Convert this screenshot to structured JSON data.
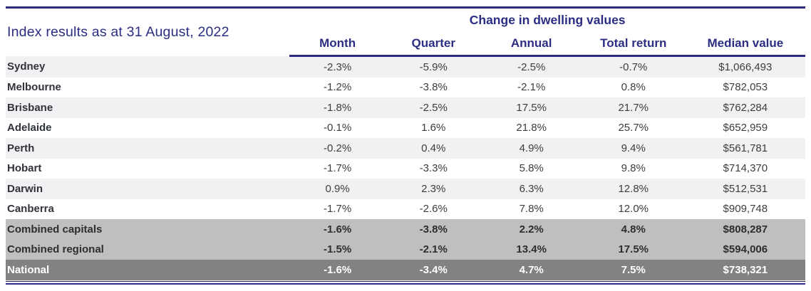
{
  "title": "Index results as at 31 August, 2022",
  "colors": {
    "accent_navy": "#2b2e83",
    "stripe_row_bg": "#f1f1f4",
    "subtotal_row_bg": "#bfbfbf",
    "total_row_bg": "#828282",
    "total_row_text": "#ffffff"
  },
  "chart_data": {
    "type": "table",
    "title": "Index results as at 31 August, 2022",
    "group_header": "Change in dwelling values",
    "columns": {
      "month": "Month",
      "quarter": "Quarter",
      "annual": "Annual",
      "total_return": "Total return",
      "median_value": "Median value"
    },
    "rows": [
      {
        "label": "Sydney",
        "month": "-2.3%",
        "quarter": "-5.9%",
        "annual": "-2.5%",
        "total_return": "-0.7%",
        "median_value": "$1,066,493"
      },
      {
        "label": "Melbourne",
        "month": "-1.2%",
        "quarter": "-3.8%",
        "annual": "-2.1%",
        "total_return": "0.8%",
        "median_value": "$782,053"
      },
      {
        "label": "Brisbane",
        "month": "-1.8%",
        "quarter": "-2.5%",
        "annual": "17.5%",
        "total_return": "21.7%",
        "median_value": "$762,284"
      },
      {
        "label": "Adelaide",
        "month": "-0.1%",
        "quarter": "1.6%",
        "annual": "21.8%",
        "total_return": "25.7%",
        "median_value": "$652,959"
      },
      {
        "label": "Perth",
        "month": "-0.2%",
        "quarter": "0.4%",
        "annual": "4.9%",
        "total_return": "9.4%",
        "median_value": "$561,781"
      },
      {
        "label": "Hobart",
        "month": "-1.7%",
        "quarter": "-3.3%",
        "annual": "5.8%",
        "total_return": "9.8%",
        "median_value": "$714,370"
      },
      {
        "label": "Darwin",
        "month": "0.9%",
        "quarter": "2.3%",
        "annual": "6.3%",
        "total_return": "12.8%",
        "median_value": "$512,531"
      },
      {
        "label": "Canberra",
        "month": "-1.7%",
        "quarter": "-2.6%",
        "annual": "7.8%",
        "total_return": "12.0%",
        "median_value": "$909,748"
      },
      {
        "label": "Combined capitals",
        "month": "-1.6%",
        "quarter": "-3.8%",
        "annual": "2.2%",
        "total_return": "4.8%",
        "median_value": "$808,287"
      },
      {
        "label": "Combined regional",
        "month": "-1.5%",
        "quarter": "-2.1%",
        "annual": "13.4%",
        "total_return": "17.5%",
        "median_value": "$594,006"
      },
      {
        "label": "National",
        "month": "-1.6%",
        "quarter": "-3.4%",
        "annual": "4.7%",
        "total_return": "7.5%",
        "median_value": "$738,321"
      }
    ]
  }
}
